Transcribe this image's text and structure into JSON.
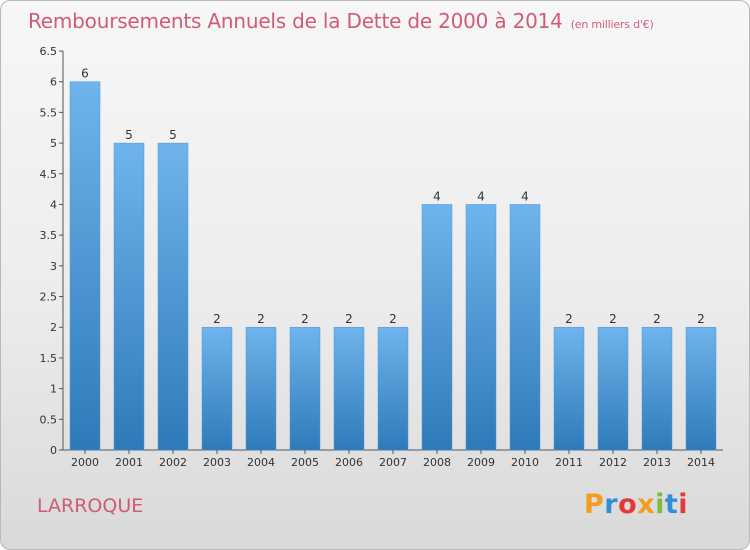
{
  "header": {
    "title": "Remboursements Annuels de la Dette de 2000 à 2014",
    "subtitle": "(en milliers d'€)"
  },
  "footer": {
    "commune": "LARROQUE",
    "logo_text": "Proxiti"
  },
  "colors": {
    "title": "#d05c73",
    "bar_top": "#6fb4ec",
    "bar_bottom": "#2e7ab8",
    "logo": [
      "#f39c20",
      "#2e8fd6",
      "#e23a3a",
      "#f39c20",
      "#7dbb42",
      "#2e8fd6",
      "#e23a3a"
    ]
  },
  "chart_data": {
    "type": "bar",
    "categories": [
      "2000",
      "2001",
      "2002",
      "2003",
      "2004",
      "2005",
      "2006",
      "2007",
      "2008",
      "2009",
      "2010",
      "2011",
      "2012",
      "2013",
      "2014"
    ],
    "values": [
      6,
      5,
      5,
      2,
      2,
      2,
      2,
      2,
      4,
      4,
      4,
      2,
      2,
      2,
      2
    ],
    "ylim": [
      0,
      6.5
    ],
    "yticks": [
      0,
      0.5,
      1,
      1.5,
      2,
      2.5,
      3,
      3.5,
      4,
      4.5,
      5,
      5.5,
      6,
      6.5
    ],
    "ytick_labels": [
      "0",
      "0.5",
      "1",
      "1.5",
      "2",
      "2.5",
      "3",
      "3.5",
      "4",
      "4.5",
      "5",
      "5.5",
      "6",
      "6.5"
    ],
    "data_labels": [
      "6",
      "5",
      "5",
      "2",
      "2",
      "2",
      "2",
      "2",
      "4",
      "4",
      "4",
      "2",
      "2",
      "2",
      "2"
    ],
    "grid": false
  }
}
